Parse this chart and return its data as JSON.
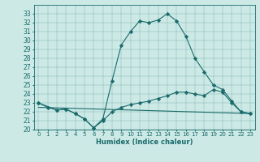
{
  "xlabel": "Humidex (Indice chaleur)",
  "bg_color": "#cce9e6",
  "line_color": "#1a6b6b",
  "xlim": [
    -0.5,
    23.5
  ],
  "ylim": [
    20,
    34
  ],
  "yticks": [
    20,
    21,
    22,
    23,
    24,
    25,
    26,
    27,
    28,
    29,
    30,
    31,
    32,
    33
  ],
  "xticks": [
    0,
    1,
    2,
    3,
    4,
    5,
    6,
    7,
    8,
    9,
    10,
    11,
    12,
    13,
    14,
    15,
    16,
    17,
    18,
    19,
    20,
    21,
    22,
    23
  ],
  "line1_x": [
    0,
    1,
    2,
    3,
    4,
    5,
    6,
    7,
    8,
    9,
    10,
    11,
    12,
    13,
    14,
    15,
    16,
    17,
    18,
    19,
    20,
    21,
    22,
    23
  ],
  "line1_y": [
    23.0,
    22.5,
    22.2,
    22.3,
    21.8,
    21.2,
    20.2,
    21.2,
    25.5,
    29.5,
    31.0,
    32.2,
    32.0,
    32.3,
    33.0,
    32.2,
    30.5,
    28.0,
    26.5,
    25.0,
    24.5,
    23.2,
    22.0,
    21.8
  ],
  "line2_x": [
    0,
    2,
    3,
    4,
    5,
    6,
    7,
    8,
    9,
    10,
    11,
    12,
    13,
    14,
    15,
    16,
    17,
    18,
    19,
    20,
    21,
    22,
    23
  ],
  "line2_y": [
    23.0,
    22.2,
    22.3,
    21.8,
    21.2,
    20.2,
    21.0,
    22.0,
    22.5,
    22.8,
    23.0,
    23.2,
    23.5,
    23.8,
    24.2,
    24.2,
    24.0,
    23.8,
    24.5,
    24.2,
    23.0,
    22.0,
    21.8
  ],
  "line3_x": [
    0,
    23
  ],
  "line3_y": [
    22.5,
    21.8
  ]
}
